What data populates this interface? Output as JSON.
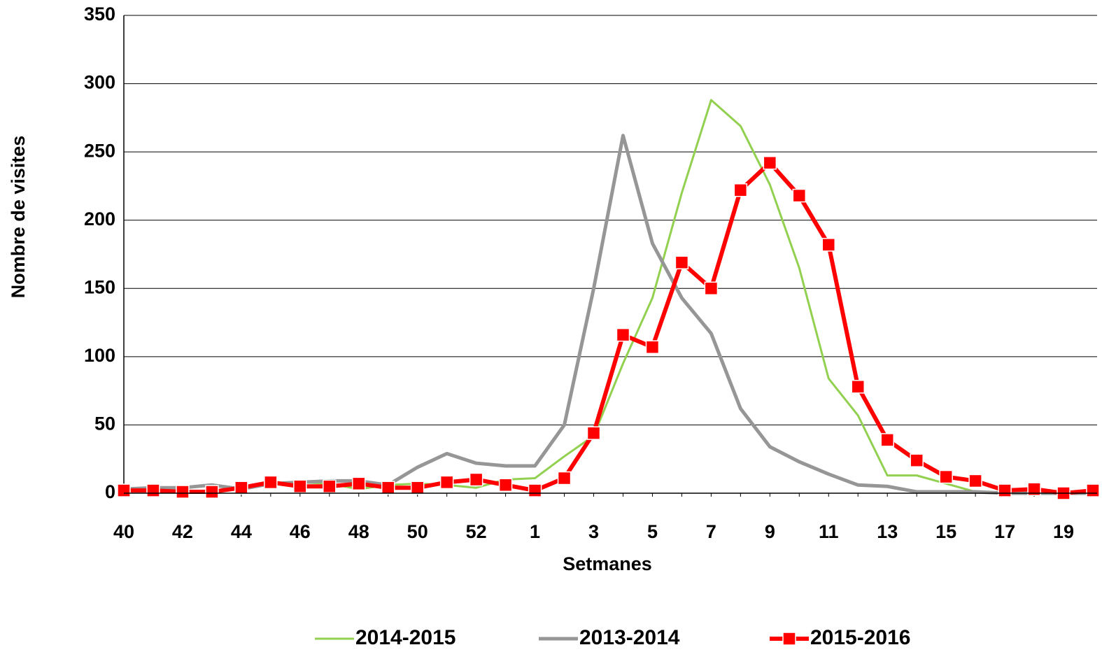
{
  "chart_data": {
    "type": "line",
    "x_label": "Setmanes",
    "y_label": "Nombre de visites",
    "categories": [
      "40",
      null,
      "42",
      null,
      "44",
      null,
      "46",
      null,
      "48",
      null,
      "50",
      null,
      "52",
      null,
      "1",
      null,
      "3",
      null,
      "5",
      null,
      "7",
      null,
      "9",
      null,
      "11",
      null,
      "13",
      null,
      "15",
      null,
      "17",
      null,
      "19",
      null
    ],
    "series": [
      {
        "name": "2014-2015",
        "color": "#92d050",
        "width": 3,
        "marker": false,
        "values": [
          2,
          2,
          1,
          1,
          4,
          6,
          8,
          7,
          3,
          6,
          7,
          6,
          4,
          10,
          11,
          27,
          42,
          95,
          143,
          220,
          288,
          269,
          226,
          165,
          84,
          57,
          13,
          13,
          7,
          1,
          0,
          null,
          null,
          null
        ]
      },
      {
        "name": "2013-2014",
        "color": "#969696",
        "width": 5,
        "marker": false,
        "values": [
          3,
          4,
          4,
          6,
          3,
          7,
          8,
          9,
          9,
          6,
          19,
          29,
          22,
          20,
          20,
          50,
          150,
          262,
          183,
          143,
          117,
          62,
          34,
          23,
          14,
          6,
          5,
          1,
          1,
          1,
          0,
          0,
          0,
          0
        ]
      },
      {
        "name": "2015-2016",
        "color": "#ff0000",
        "width": 6,
        "marker": true,
        "values": [
          2,
          2,
          1,
          1,
          4,
          8,
          5,
          5,
          7,
          4,
          4,
          8,
          10,
          6,
          2,
          11,
          44,
          116,
          107,
          169,
          150,
          222,
          242,
          218,
          182,
          78,
          39,
          24,
          12,
          9,
          2,
          3,
          0,
          2
        ]
      }
    ],
    "ylim": [
      0,
      350
    ],
    "yticks": [
      0,
      50,
      100,
      150,
      200,
      250,
      300,
      350
    ],
    "grid": true
  }
}
